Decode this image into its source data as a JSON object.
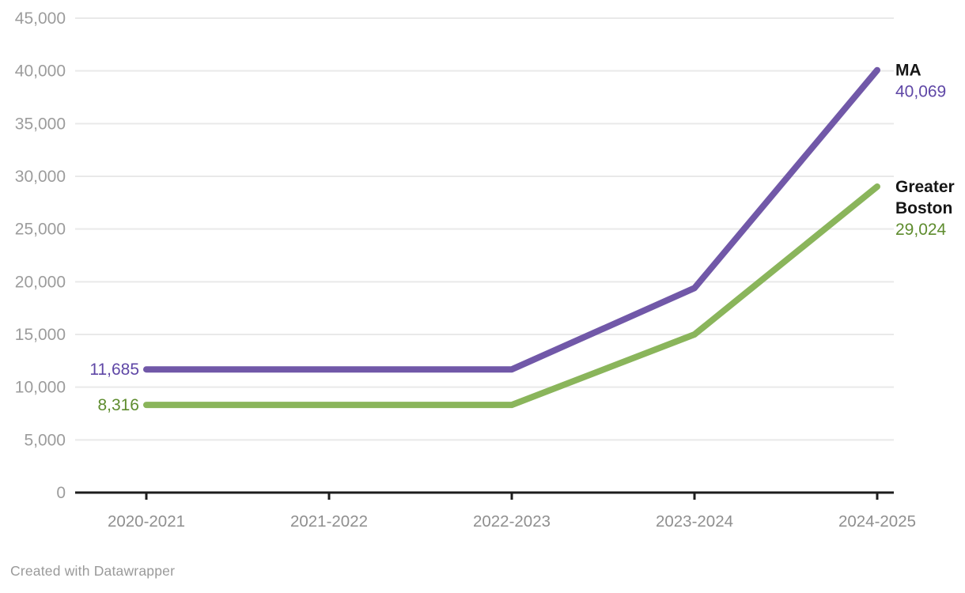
{
  "chart_data": {
    "type": "line",
    "categories": [
      "2020-2021",
      "2021-2022",
      "2022-2023",
      "2023-2024",
      "2024-2025"
    ],
    "series": [
      {
        "name": "MA",
        "name_lines": [
          "MA"
        ],
        "color": "#7158a8",
        "label_color": "#5f47a6",
        "values": [
          11685,
          11685,
          11685,
          19400,
          40069
        ],
        "first_value_label": "11,685",
        "last_value_label": "40,069"
      },
      {
        "name": "Greater Boston",
        "name_lines": [
          "Greater",
          "Boston"
        ],
        "color": "#8ab55b",
        "label_color": "#5e8c2e",
        "values": [
          8316,
          8316,
          8316,
          15000,
          29024
        ],
        "first_value_label": "8,316",
        "last_value_label": "29,024"
      }
    ],
    "ylim": [
      0,
      45000
    ],
    "yticks": [
      0,
      5000,
      10000,
      15000,
      20000,
      25000,
      30000,
      35000,
      40000,
      45000
    ],
    "ytick_labels": [
      "0",
      "5,000",
      "10,000",
      "15,000",
      "20,000",
      "25,000",
      "30,000",
      "35,000",
      "40,000",
      "45,000"
    ],
    "grid": "horizontal gridlines on, no vertical grid",
    "legend_position": "direct labels at line ends (right side)"
  },
  "colors": {
    "background": "#ffffff",
    "gridline": "#e9e9e9",
    "axis_line": "#1d1d1d",
    "y_tick_label": "#9c9c9c",
    "x_tick_label": "#8f8f8f",
    "series_name_label": "#161616",
    "attribution": "#9a9a9a"
  },
  "footer": {
    "attribution": "Created with Datawrapper"
  }
}
